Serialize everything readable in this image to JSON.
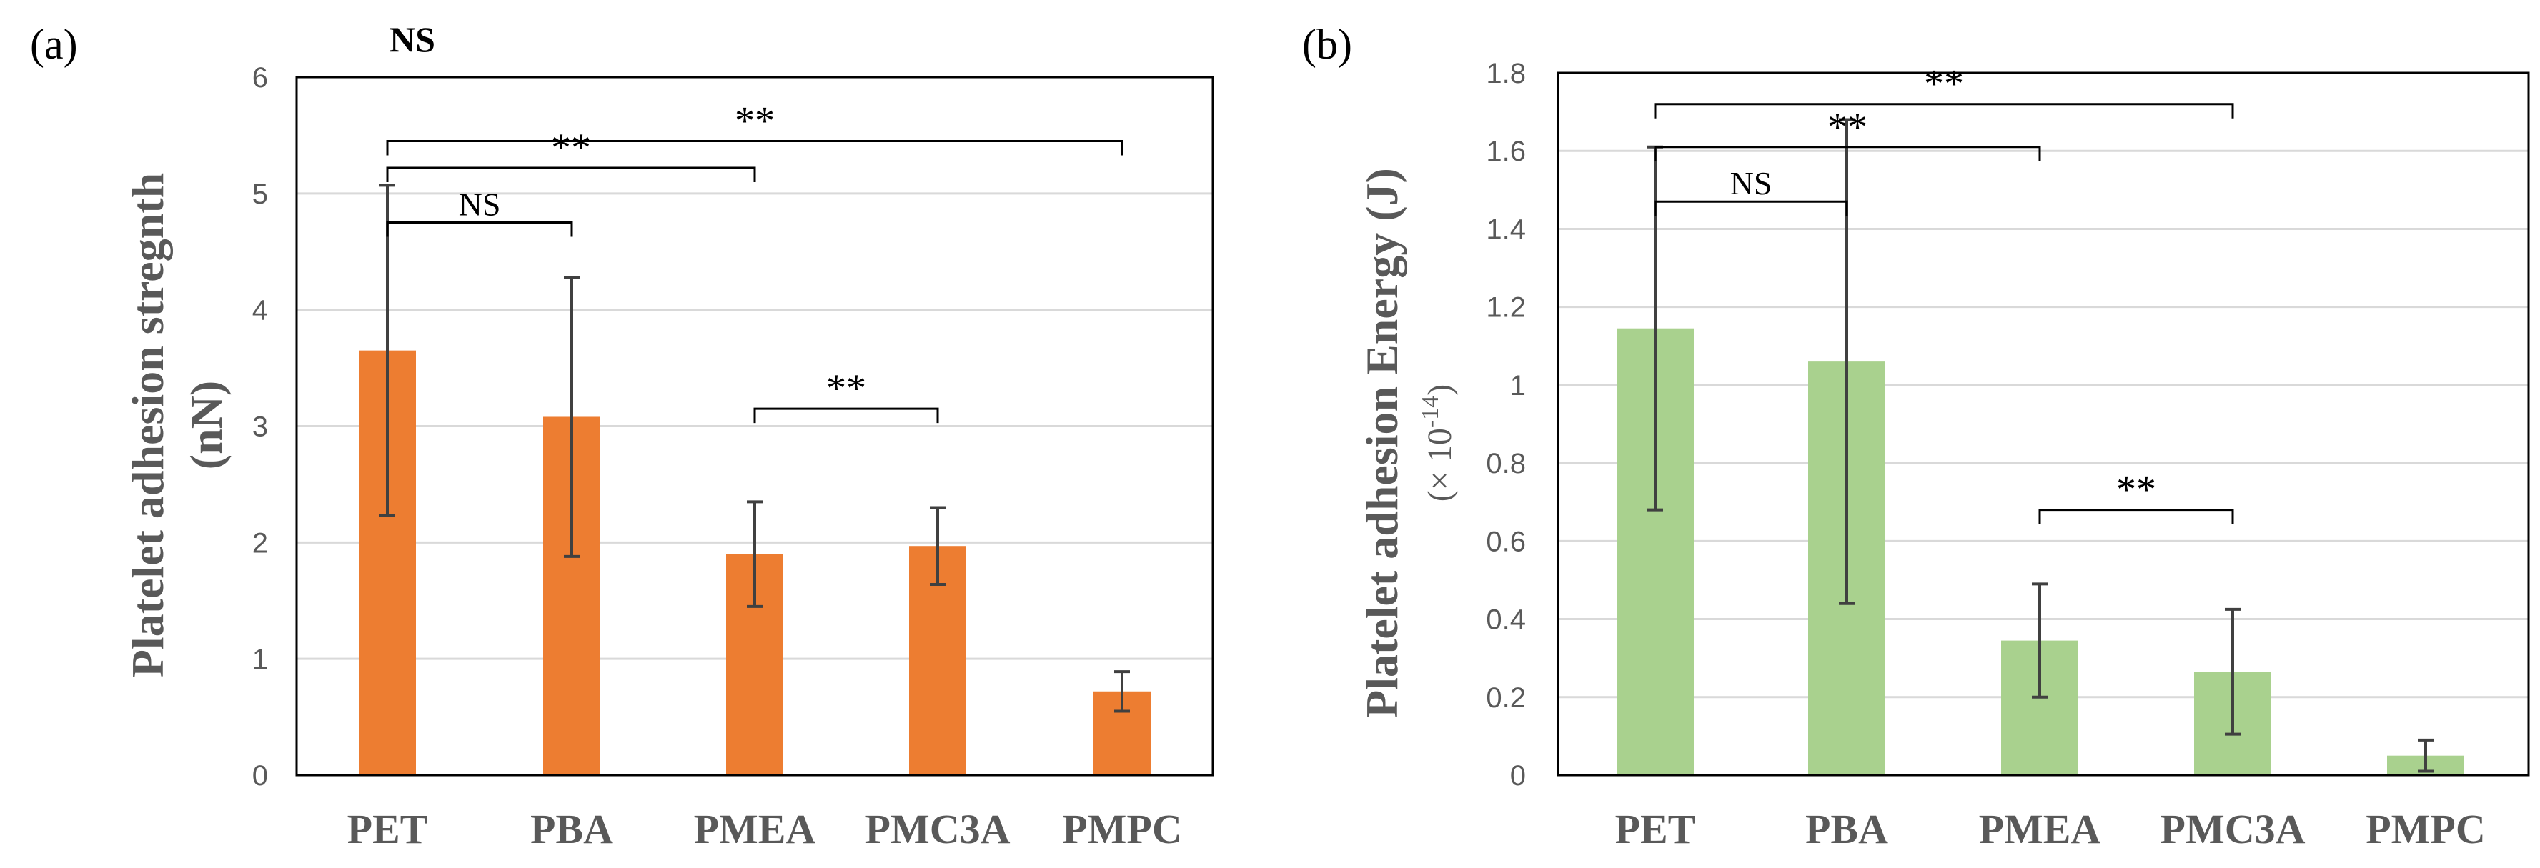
{
  "chart_data": [
    {
      "type": "bar",
      "panel_label": "(a)",
      "top_annotation": "NS",
      "categories": [
        "PET",
        "PBA",
        "PMEA",
        "PMC3A",
        "PMPC"
      ],
      "values": [
        3.65,
        3.08,
        1.9,
        1.97,
        0.72
      ],
      "error": [
        1.42,
        1.2,
        0.45,
        0.33,
        0.17
      ],
      "ylabel": "Platelet adhesion stregnth",
      "ylabel_unit": "(nN)",
      "ylim": [
        0,
        6
      ],
      "yticks": [
        "0",
        "1",
        "2",
        "3",
        "4",
        "5",
        "6"
      ],
      "color": "#ed7d31",
      "grid": true,
      "significance": [
        {
          "from": 0,
          "to": 4,
          "label": "**",
          "level": 5.45
        },
        {
          "from": 0,
          "to": 2,
          "label": "**",
          "level": 5.22
        },
        {
          "from": 0,
          "to": 1,
          "label": "NS",
          "level": 4.75
        },
        {
          "from": 2,
          "to": 3,
          "label": "**",
          "level": 3.15
        }
      ]
    },
    {
      "type": "bar",
      "panel_label": "(b)",
      "categories": [
        "PET",
        "PBA",
        "PMEA",
        "PMC3A",
        "PMPC"
      ],
      "values": [
        1.145,
        1.06,
        0.345,
        0.265,
        0.05
      ],
      "error": [
        0.465,
        0.62,
        0.145,
        0.16,
        0.04
      ],
      "ylabel": "Platelet adhesion Energy (J)",
      "ylabel_unit": "(× 10",
      "ylabel_exp": "-14",
      "ylabel_close": ")",
      "ylim": [
        0,
        1.8
      ],
      "yticks": [
        "0",
        "0.2",
        "0.4",
        "0.6",
        "0.8",
        "1",
        "1.2",
        "1.4",
        "1.6",
        "1.8"
      ],
      "color": "#a9d18e",
      "grid": true,
      "significance": [
        {
          "from": 0,
          "to": 3,
          "label": "**",
          "level": 1.72
        },
        {
          "from": 0,
          "to": 2,
          "label": "**",
          "level": 1.61
        },
        {
          "from": 0,
          "to": 1,
          "label": "NS",
          "level": 1.47
        },
        {
          "from": 2,
          "to": 3,
          "label": "**",
          "level": 0.68
        }
      ]
    }
  ]
}
